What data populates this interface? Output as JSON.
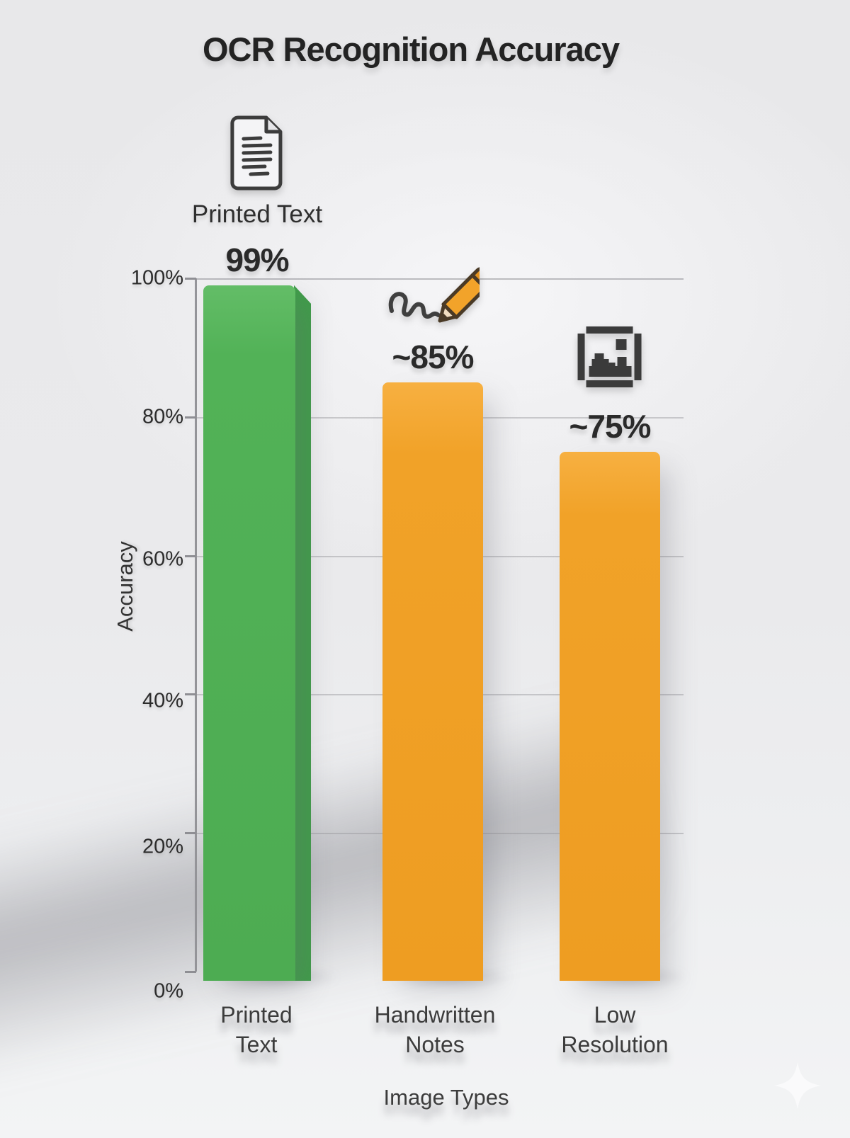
{
  "title": "OCR Recognition Accuracy",
  "chart_data": {
    "type": "bar",
    "title": "OCR Recognition Accuracy",
    "xlabel": "Image Types",
    "ylabel": "Accuracy",
    "categories": [
      "Printed Text",
      "Handwritten Notes",
      "Low Resolution"
    ],
    "values": [
      99,
      85,
      75
    ],
    "value_labels": [
      "99%",
      "~85%",
      "~75%"
    ],
    "ylim": [
      0,
      100
    ],
    "yticks": [
      "100%",
      "80%",
      "60%",
      "40%",
      "20%",
      "0%"
    ],
    "grid": true,
    "legend_position": "none",
    "bar_colors": [
      "#4fae55",
      "#f1a228",
      "#f1a228"
    ],
    "icons": [
      "printed-document-icon",
      "handwriting-pencil-icon",
      "pixelated-image-icon"
    ]
  },
  "annotations": {
    "top_heading": "Printed Text"
  },
  "x_labels": [
    {
      "line1": "Printed",
      "line2": "Text"
    },
    {
      "line1": "Handwritten",
      "line2": "Notes"
    },
    {
      "line1": "Low",
      "line2": "Resolution"
    }
  ],
  "colors": {
    "green": "#4fae55",
    "green_side": "#3f9c49",
    "orange": "#f1a228",
    "orange_shade": "#db8f1c",
    "background": "#eaeaec",
    "text_dark": "#262626",
    "gridline": "#9696a0",
    "axis": "#8f8f94"
  }
}
